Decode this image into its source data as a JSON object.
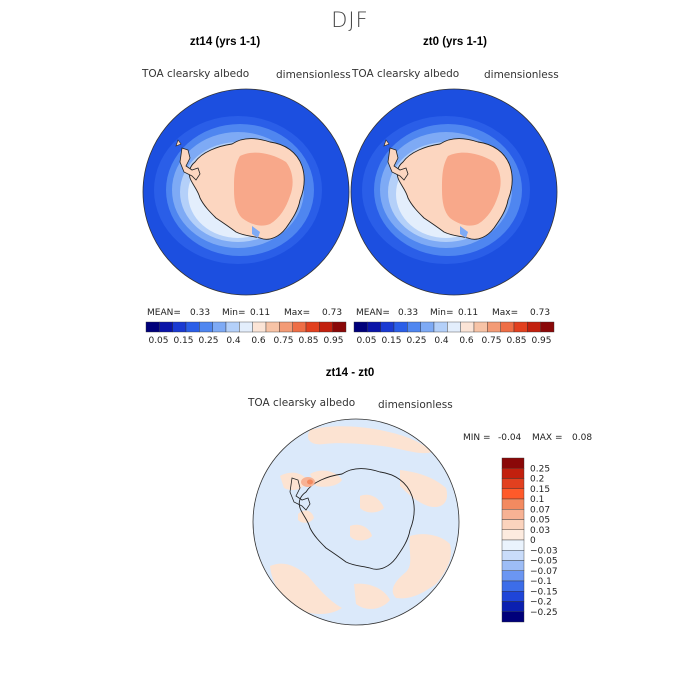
{
  "title": "DJF",
  "panels": [
    {
      "title": "zt14 (yrs 1-1)",
      "variable": "TOA clearsky albedo",
      "units": "dimensionless",
      "stats": {
        "mean_label": "MEAN=",
        "mean": "0.33",
        "min_label": "Min=",
        "min": "0.11",
        "max_label": "Max=",
        "max": "0.73"
      }
    },
    {
      "title": "zt0 (yrs 1-1)",
      "variable": "TOA clearsky albedo",
      "units": "dimensionless",
      "stats": {
        "mean_label": "MEAN=",
        "mean": "0.33",
        "min_label": "Min=",
        "min": "0.11",
        "max_label": "Max=",
        "max": "0.73"
      }
    }
  ],
  "colorbar_top": {
    "labels": [
      "0.05",
      "0.15",
      "0.25",
      "0.4",
      "0.6",
      "0.75",
      "0.85",
      "0.95"
    ],
    "colors": [
      "#00007a",
      "#0a14a8",
      "#1a3ad2",
      "#2a5ee8",
      "#4f86f0",
      "#7eaaf5",
      "#b4d0f9",
      "#e3eefc",
      "#fbe4d6",
      "#f7c3a6",
      "#f39b76",
      "#ee6e46",
      "#e2401f",
      "#c2200e",
      "#8a0808"
    ]
  },
  "diff_panel": {
    "title": "zt14 - zt0",
    "variable": "TOA clearsky albedo",
    "units": "dimensionless",
    "min_label": "MIN =",
    "min": "-0.04",
    "max_label": "MAX =",
    "max": "0.08"
  },
  "colorbar_diff": {
    "labels": [
      "0.25",
      "0.2",
      "0.15",
      "0.1",
      "0.07",
      "0.05",
      "0.03",
      "0",
      "−0.03",
      "−0.05",
      "−0.07",
      "−0.1",
      "−0.15",
      "−0.2",
      "−0.25"
    ],
    "colors": [
      "#8a0808",
      "#c2200e",
      "#e2401f",
      "#ff5a2a",
      "#f38a60",
      "#f7b294",
      "#fbd3bd",
      "#fdebdf",
      "#eaf3fd",
      "#c9dcfa",
      "#9dbdf6",
      "#6b96f2",
      "#3c6de9",
      "#1f45d8",
      "#0b20b0",
      "#00007a"
    ]
  },
  "colors": {
    "ocean": "#1c4fe0",
    "land_low": "#fcd6c0",
    "land_high": "#f8a88a",
    "diff_bg": "#dbe9fa",
    "diff_pos": "#fce3d2"
  }
}
